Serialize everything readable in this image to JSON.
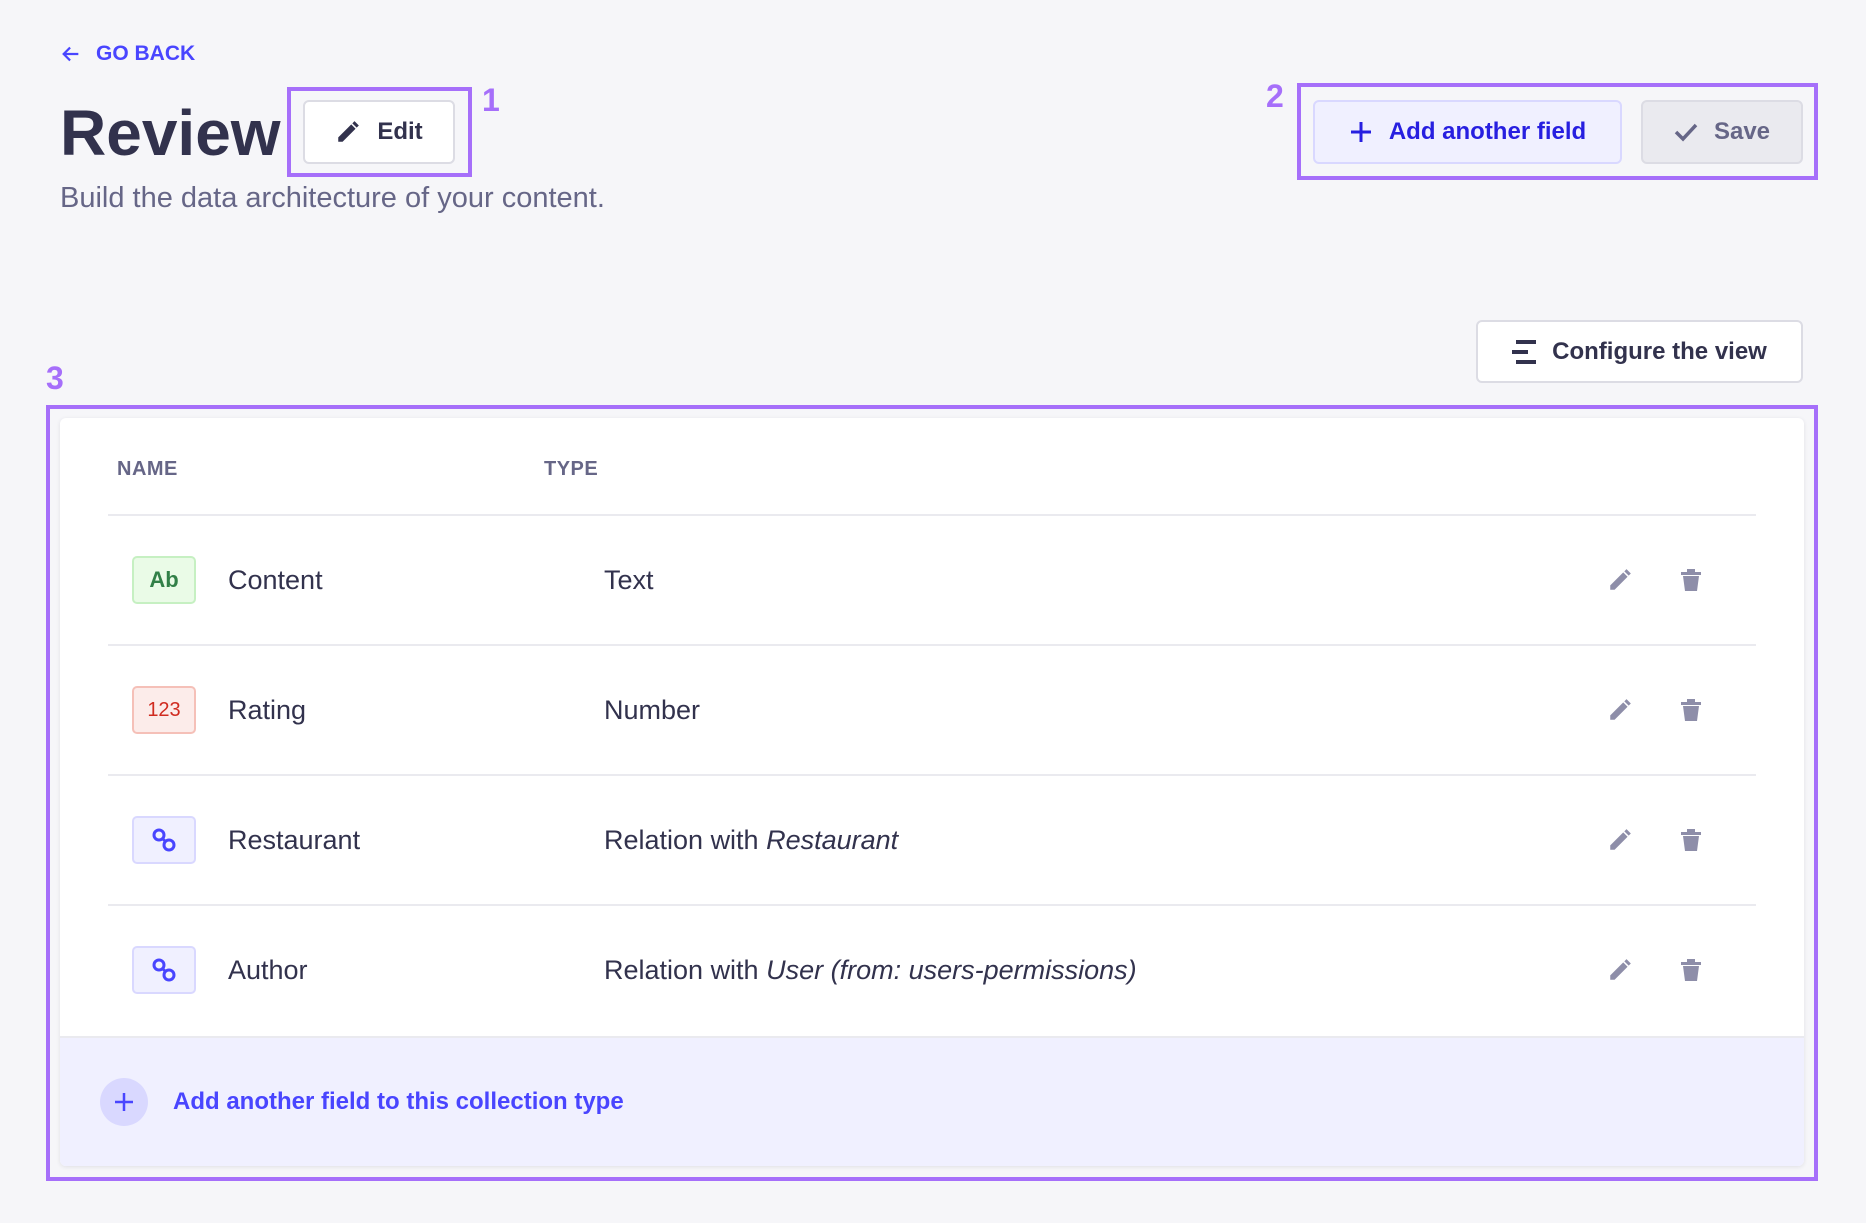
{
  "nav": {
    "go_back": "GO BACK"
  },
  "header": {
    "title": "Review",
    "edit_label": "Edit",
    "subtitle": "Build the data architecture of your content.",
    "add_field_label": "Add another field",
    "save_label": "Save"
  },
  "annotations": [
    "1",
    "2",
    "3"
  ],
  "toolbar": {
    "configure_view_label": "Configure the view"
  },
  "table": {
    "columns": [
      "NAME",
      "TYPE"
    ],
    "rows": [
      {
        "badge": "Ab",
        "badge_kind": "text",
        "name": "Content",
        "type": "Text",
        "type_target": ""
      },
      {
        "badge": "123",
        "badge_kind": "number",
        "name": "Rating",
        "type": "Number",
        "type_target": ""
      },
      {
        "badge": "",
        "badge_kind": "relation",
        "name": "Restaurant",
        "type": "Relation with ",
        "type_target": "Restaurant"
      },
      {
        "badge": "",
        "badge_kind": "relation",
        "name": "Author",
        "type": "Relation with ",
        "type_target": "User (from: users-permissions)"
      }
    ],
    "footer_label": "Add another field to this collection type"
  },
  "colors": {
    "primary": "#4945ff",
    "annotation": "#a66ffa",
    "text_badge": "#328048",
    "number_badge": "#d02b20"
  }
}
